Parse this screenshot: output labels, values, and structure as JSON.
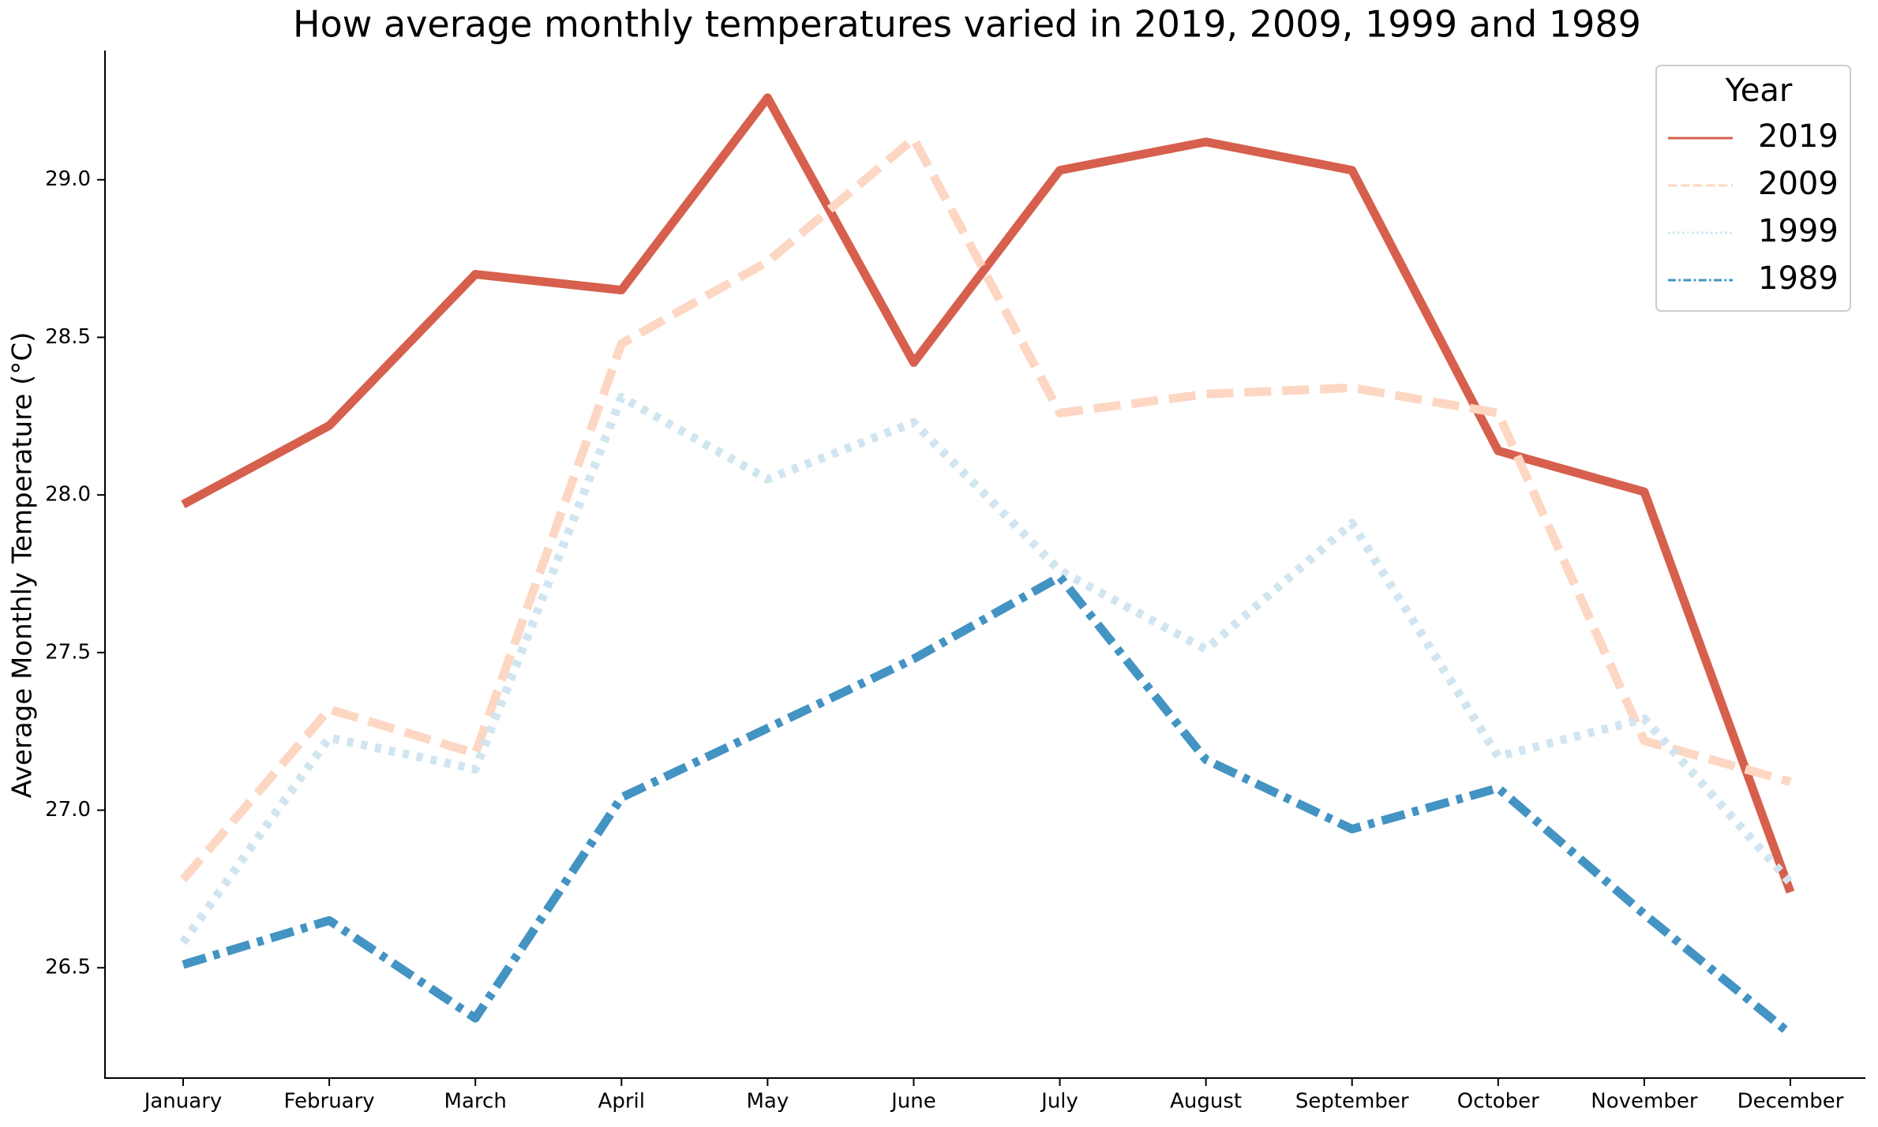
{
  "chart_data": {
    "type": "line",
    "title": "How average monthly temperatures varied in 2019, 2009, 1999 and 1989",
    "y_label": "Average Monthly Temperature (°C)",
    "categories": [
      "January",
      "February",
      "March",
      "April",
      "May",
      "June",
      "July",
      "August",
      "September",
      "October",
      "November",
      "December"
    ],
    "series": [
      {
        "name": "2019",
        "color": "#d6604d",
        "linestyle": "solid",
        "values": [
          27.97,
          28.22,
          28.7,
          28.65,
          29.26,
          28.42,
          29.03,
          29.12,
          29.03,
          28.14,
          28.01,
          26.74
        ]
      },
      {
        "name": "2009",
        "color": "#fdd7c3",
        "linestyle": "dashed",
        "values": [
          26.78,
          27.32,
          27.18,
          28.48,
          28.74,
          29.13,
          28.26,
          28.32,
          28.34,
          28.26,
          27.22,
          27.09
        ]
      },
      {
        "name": "1999",
        "color": "#d1e5f0",
        "linestyle": "dotted",
        "values": [
          26.58,
          27.23,
          27.13,
          28.31,
          28.05,
          28.23,
          27.76,
          27.51,
          27.91,
          27.17,
          27.29,
          26.77
        ]
      },
      {
        "name": "1989",
        "color": "#4393c3",
        "linestyle": "dashdot",
        "values": [
          26.51,
          26.65,
          26.34,
          27.04,
          27.26,
          27.48,
          27.74,
          27.16,
          26.94,
          27.07,
          26.67,
          26.29
        ]
      }
    ],
    "ylim": [
      26.15,
      29.41
    ],
    "yticks": [
      26.5,
      {
        "value": 27,
        "label": "27.0"
      },
      27.5,
      {
        "value": 28,
        "label": "28.0"
      },
      28.5,
      {
        "value": 29,
        "label": "29.0"
      }
    ],
    "grid": false,
    "legend_title": "Year",
    "legend": "upper right"
  }
}
